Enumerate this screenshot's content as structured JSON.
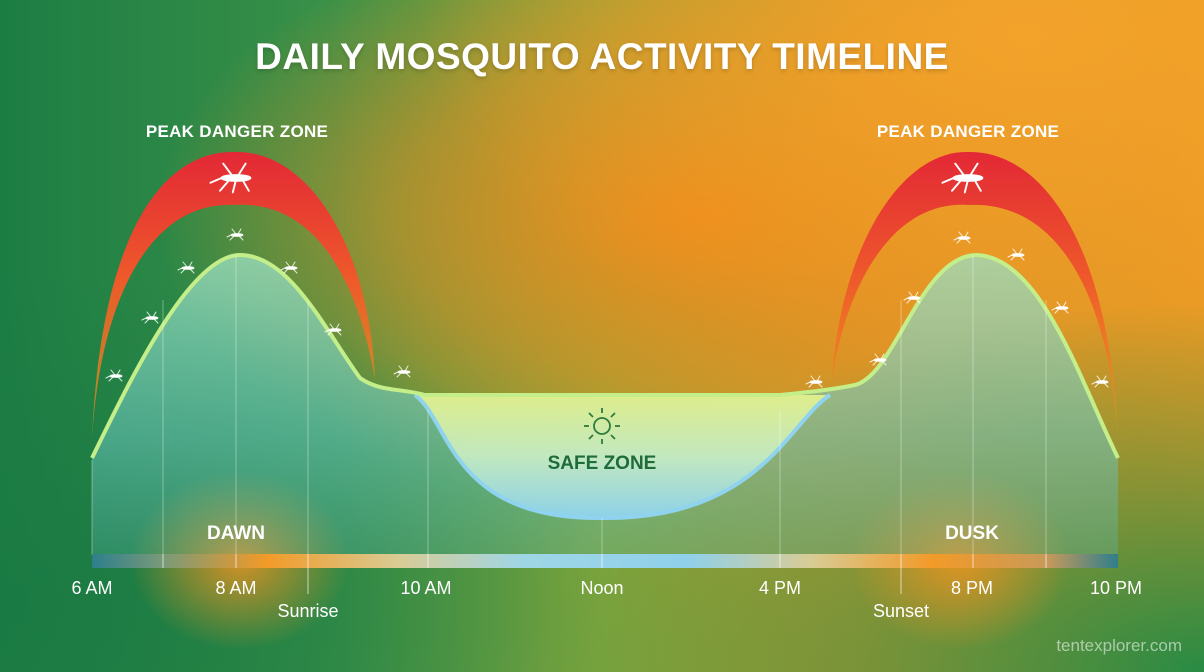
{
  "title": "DAILY MOSQUITO ACTIVITY TIMELINE",
  "zones": {
    "peak_left": "PEAK DANGER ZONE",
    "peak_right": "PEAK DANGER ZONE",
    "safe": "SAFE ZONE"
  },
  "periods": {
    "dawn": "DAWN",
    "dusk": "DUSK"
  },
  "timeline": {
    "ticks": [
      "6 AM",
      "8 AM",
      "10 AM",
      "Noon",
      "4 PM",
      "8 PM",
      "10 PM"
    ],
    "sunrise": "Sunrise",
    "sunset": "Sunset"
  },
  "icons": [
    "mosquito-icon",
    "sun-icon"
  ],
  "colors": {
    "danger_red": "#e8283a",
    "danger_orange": "#f08a1e",
    "safe_green": "#1f6b3a",
    "background_green": "#1f8a4a",
    "background_orange": "#f09a22",
    "curve_stroke": "#c4ee8a",
    "safe_fill": "#a8dcef"
  },
  "watermark": "tentexplorer.com"
}
